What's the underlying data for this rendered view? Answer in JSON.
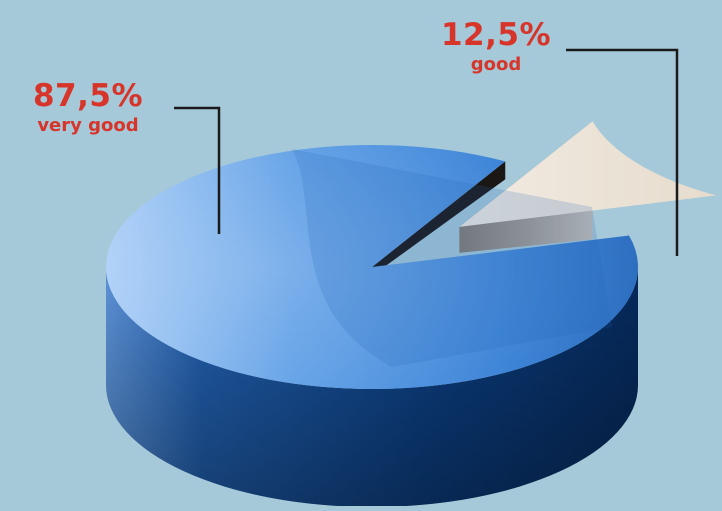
{
  "chart_data": {
    "type": "pie",
    "style": "3d-exploded",
    "slices": [
      {
        "label": "very good",
        "value": 87.5,
        "value_text": "87,5%",
        "color": "#3f87db"
      },
      {
        "label": "good",
        "value": 12.5,
        "value_text": "12,5%",
        "color": "#e9e0d3"
      }
    ],
    "exploded_slice": "good",
    "title": "",
    "legend": "none"
  },
  "colors": {
    "background": "#a5c9d9",
    "label_text": "#d7342a",
    "leader_line": "#1a1a1a"
  }
}
